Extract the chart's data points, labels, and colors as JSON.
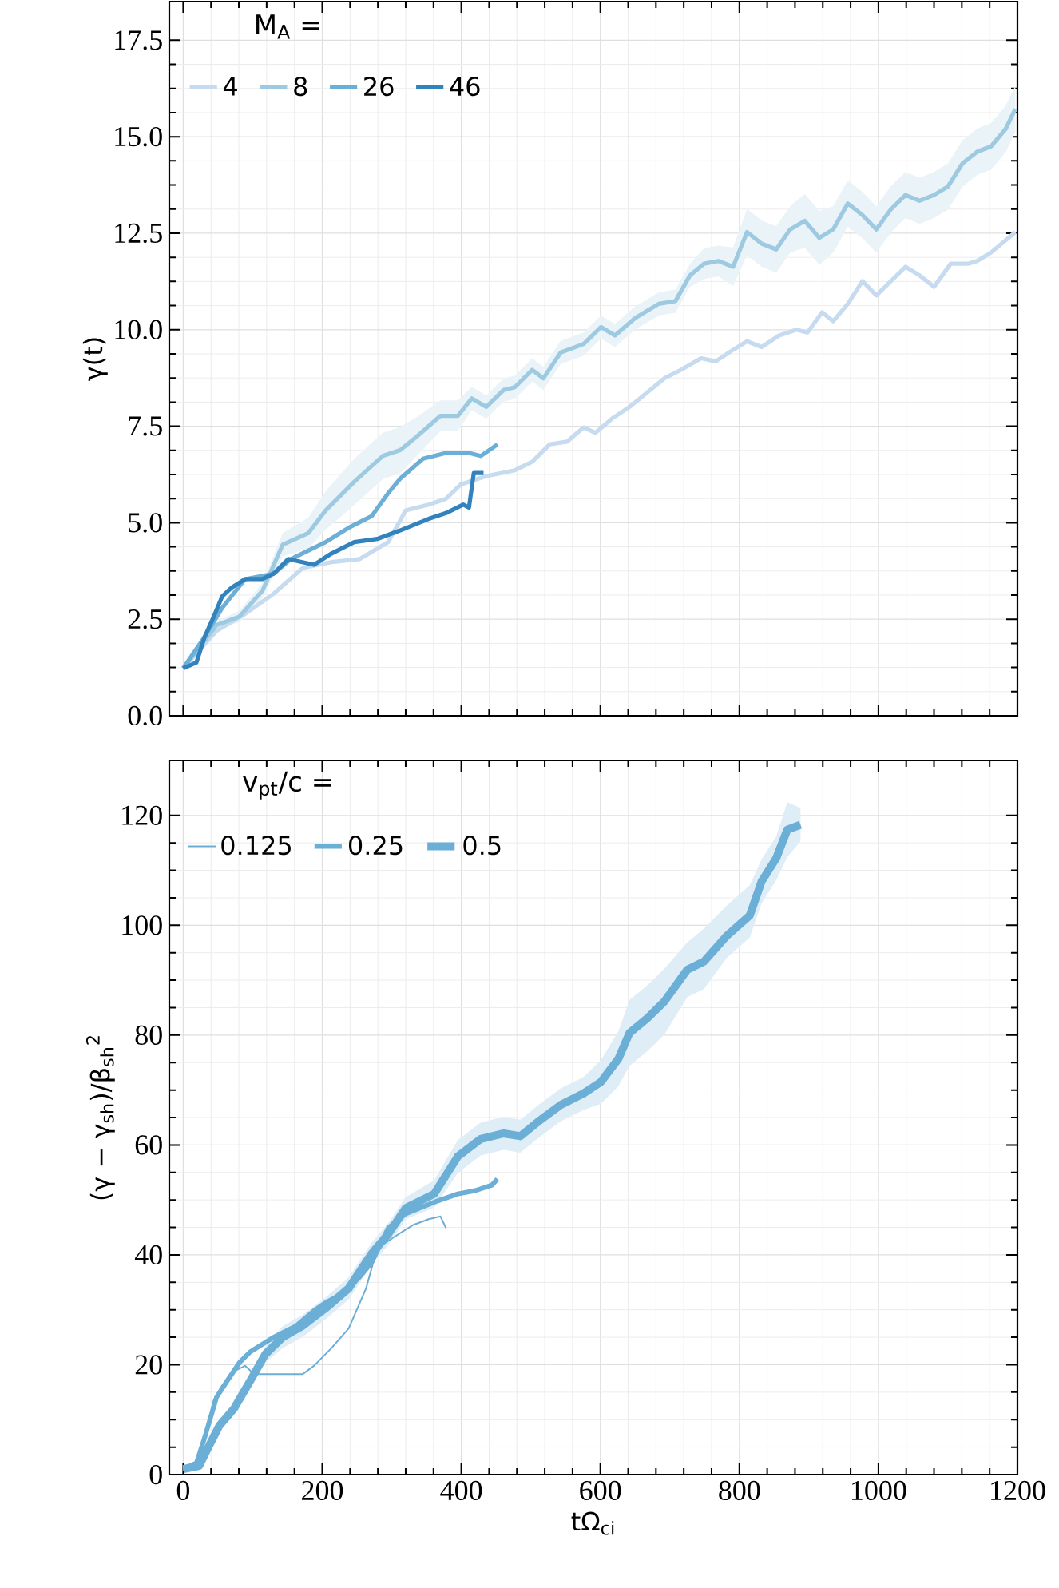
{
  "chart_data": [
    {
      "type": "line",
      "ylabel": "γ(t)",
      "legend_title": "M$_{A}$ =",
      "xlim": [
        -20,
        1200
      ],
      "ylim": [
        0,
        18.5
      ],
      "xticks": [
        0,
        200,
        400,
        600,
        800,
        1000,
        1200
      ],
      "yticks": [
        {
          "value": 0,
          "label": "0.0"
        },
        2.5,
        {
          "value": 5,
          "label": "5.0"
        },
        7.5,
        {
          "value": 10,
          "label": "10.0"
        },
        12.5,
        {
          "value": 15,
          "label": "15.0"
        },
        17.5
      ],
      "grid": true,
      "legend": "top left",
      "tick_labels": "y",
      "series": [
        {
          "name": "4",
          "color": "#c6dbef",
          "x": [
            0,
            48,
            89,
            130,
            172,
            213,
            254,
            295,
            320,
            353,
            378,
            399,
            436,
            477,
            502,
            527,
            552,
            576,
            593,
            617,
            642,
            667,
            692,
            716,
            745,
            766,
            791,
            811,
            832,
            857,
            882,
            898,
            919,
            935,
            956,
            977,
            997,
            1018,
            1039,
            1059,
            1080,
            1104,
            1129,
            1142,
            1162,
            1197
          ],
          "values": [
            1.23,
            2.2,
            2.64,
            3.16,
            3.83,
            3.98,
            4.06,
            4.5,
            5.32,
            5.47,
            5.62,
            5.99,
            6.21,
            6.36,
            6.58,
            7.03,
            7.1,
            7.47,
            7.33,
            7.7,
            8.0,
            8.37,
            8.74,
            8.96,
            9.26,
            9.18,
            9.48,
            9.7,
            9.55,
            9.85,
            10.0,
            9.93,
            10.45,
            10.22,
            10.67,
            11.26,
            10.89,
            11.26,
            11.63,
            11.41,
            11.11,
            11.71,
            11.71,
            11.78,
            12.0,
            12.53
          ]
        },
        {
          "name": "8",
          "color": "#9ecae1",
          "x": [
            0,
            48,
            81,
            114,
            143,
            180,
            205,
            246,
            287,
            312,
            337,
            370,
            395,
            415,
            436,
            461,
            477,
            502,
            518,
            543,
            576,
            601,
            621,
            650,
            684,
            708,
            729,
            749,
            770,
            791,
            811,
            832,
            853,
            873,
            894,
            915,
            935,
            956,
            977,
            997,
            1018,
            1039,
            1059,
            1080,
            1100,
            1121,
            1142,
            1162,
            1183,
            1197
          ],
          "values": [
            1.23,
            2.35,
            2.57,
            3.24,
            4.43,
            4.73,
            5.32,
            6.06,
            6.73,
            6.88,
            7.25,
            7.77,
            7.77,
            8.22,
            8.0,
            8.44,
            8.51,
            8.96,
            8.74,
            9.41,
            9.63,
            10.07,
            9.85,
            10.3,
            10.67,
            10.74,
            11.41,
            11.71,
            11.78,
            11.63,
            12.53,
            12.23,
            12.08,
            12.6,
            12.82,
            12.38,
            12.6,
            13.27,
            12.97,
            12.6,
            13.12,
            13.49,
            13.34,
            13.49,
            13.71,
            14.31,
            14.61,
            14.75,
            15.2,
            15.72
          ],
          "lower": [
            1.18,
            2.25,
            2.42,
            3.04,
            4.13,
            4.33,
            4.82,
            5.46,
            6.13,
            6.28,
            6.75,
            7.37,
            7.37,
            7.92,
            7.7,
            8.14,
            8.21,
            8.66,
            8.44,
            9.11,
            9.33,
            9.77,
            9.55,
            10.0,
            10.37,
            10.44,
            11.11,
            11.31,
            11.38,
            11.13,
            11.93,
            11.63,
            11.48,
            12.0,
            12.12,
            11.68,
            12.0,
            12.67,
            12.37,
            12.0,
            12.52,
            12.89,
            12.74,
            12.89,
            13.11,
            13.71,
            14.01,
            14.15,
            14.6,
            15.12
          ],
          "upper": [
            1.28,
            2.45,
            2.72,
            3.44,
            4.73,
            5.13,
            5.82,
            6.66,
            7.33,
            7.48,
            7.75,
            8.17,
            8.17,
            8.52,
            8.3,
            8.74,
            8.81,
            9.26,
            9.04,
            9.71,
            9.93,
            10.37,
            10.15,
            10.6,
            10.97,
            11.04,
            11.71,
            12.11,
            12.18,
            12.13,
            13.13,
            12.83,
            12.68,
            13.2,
            13.52,
            13.08,
            13.2,
            13.87,
            13.57,
            13.2,
            13.72,
            14.09,
            13.94,
            14.09,
            14.31,
            14.91,
            15.21,
            15.35,
            15.8,
            16.32
          ]
        },
        {
          "name": "26",
          "color": "#6baed6",
          "x": [
            0,
            31,
            56,
            89,
            130,
            155,
            205,
            238,
            271,
            295,
            312,
            345,
            378,
            411,
            428,
            452
          ],
          "values": [
            1.23,
            2.05,
            2.79,
            3.54,
            3.68,
            4.06,
            4.5,
            4.87,
            5.17,
            5.77,
            6.14,
            6.66,
            6.81,
            6.81,
            6.73,
            7.03
          ]
        },
        {
          "name": "46",
          "color": "#3182bd",
          "x": [
            0,
            19,
            31,
            44,
            56,
            69,
            89,
            114,
            130,
            151,
            188,
            213,
            246,
            279,
            312,
            353,
            378,
            403,
            411,
            418,
            432
          ],
          "values": [
            1.23,
            1.38,
            2.05,
            2.57,
            3.09,
            3.31,
            3.54,
            3.54,
            3.68,
            4.06,
            3.91,
            4.2,
            4.5,
            4.58,
            4.8,
            5.1,
            5.25,
            5.47,
            5.39,
            6.29,
            6.29
          ]
        }
      ]
    },
    {
      "type": "line",
      "xlabel": "tΩ$_{ci}$",
      "ylabel": "(γ − γ$_{sh}$)/β$_{sh}$$^{2}$",
      "legend_title": "v$_{pt}$/c =",
      "xlim": [
        -20,
        1200
      ],
      "ylim": [
        0,
        130
      ],
      "xticks": [
        0,
        200,
        400,
        600,
        800,
        1000,
        1200
      ],
      "yticks": [
        0,
        20,
        40,
        60,
        80,
        100,
        120
      ],
      "grid": true,
      "legend": "top left",
      "series": [
        {
          "name": "0.125",
          "color": "#6baed6",
          "x": [
            0,
            23,
            44,
            56,
            73,
            89,
            102,
            130,
            172,
            188,
            213,
            238,
            263,
            279,
            304,
            330,
            353,
            370,
            378
          ],
          "values": [
            1.0,
            2.6,
            13.6,
            16.2,
            18.8,
            19.8,
            18.3,
            18.3,
            18.3,
            19.8,
            23,
            26.6,
            33.9,
            41.2,
            43.3,
            45.4,
            46.5,
            47,
            44.9
          ]
        },
        {
          "name": "0.25",
          "color": "#6baed6",
          "x": [
            0,
            19,
            31,
            48,
            64,
            81,
            97,
            130,
            163,
            188,
            205,
            229,
            254,
            271,
            295,
            320,
            361,
            395,
            420,
            444,
            452
          ],
          "values": [
            1.0,
            2.1,
            6.8,
            14.1,
            17.2,
            20.4,
            22.4,
            25,
            27.1,
            29.8,
            31.3,
            32.9,
            36,
            38.6,
            44.9,
            47.5,
            49.6,
            51.1,
            51.7,
            52.7,
            53.8
          ]
        },
        {
          "name": "0.5",
          "color": "#6baed6",
          "x": [
            0,
            23,
            35,
            52,
            73,
            97,
            118,
            143,
            172,
            205,
            238,
            271,
            295,
            320,
            361,
            395,
            428,
            461,
            485,
            510,
            543,
            576,
            601,
            626,
            642,
            667,
            692,
            725,
            749,
            782,
            815,
            832,
            853,
            869,
            888
          ],
          "values": [
            1.0,
            1.6,
            4.7,
            8.9,
            12,
            17.2,
            21.9,
            25,
            27.1,
            30.3,
            33.9,
            40.2,
            43.8,
            48.5,
            51.1,
            57.9,
            61.1,
            62.1,
            61.6,
            64.2,
            67.3,
            69.4,
            71.5,
            75.7,
            80.4,
            83,
            86.1,
            91.9,
            93.4,
            98.1,
            101.8,
            108,
            112.2,
            117.4,
            118.3
          ],
          "lower": [
            0.7,
            1.1,
            3.9,
            7.9,
            11,
            16.2,
            20.4,
            23,
            25.1,
            28.3,
            31.9,
            38.2,
            41.8,
            46.5,
            48.6,
            54.9,
            58.1,
            59.1,
            58.6,
            61.2,
            64.3,
            66.4,
            67.5,
            70.7,
            74.4,
            77,
            80.1,
            86.9,
            88.4,
            94.1,
            97.8,
            104,
            108.2,
            112.4,
            115.3
          ],
          "upper": [
            1.3,
            2.1,
            5.5,
            9.9,
            13,
            18.2,
            23.4,
            27,
            29.1,
            32.3,
            35.9,
            42.2,
            45.8,
            50.5,
            53.6,
            60.9,
            64.1,
            65.1,
            64.6,
            67.2,
            70.3,
            72.4,
            75.5,
            80.7,
            86.4,
            89,
            92.1,
            96.9,
            99.4,
            103.6,
            107.3,
            112,
            116.2,
            122.4,
            121.3
          ]
        }
      ]
    }
  ]
}
